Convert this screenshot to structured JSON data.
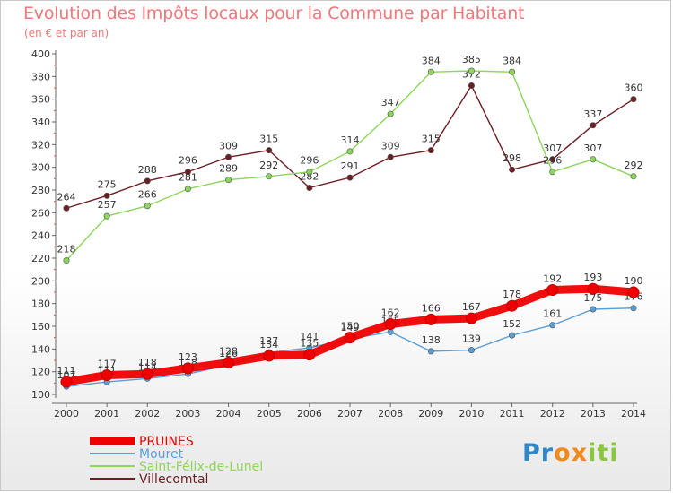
{
  "title": "Evolution des Impôts locaux pour la Commune par Habitant",
  "subtitle": "(en € et par an)",
  "logo": {
    "letters": [
      "P",
      "r",
      "o",
      "x",
      "i",
      "t",
      "i"
    ],
    "colors": [
      "#2f86c8",
      "#2f86c8",
      "#f08a1c",
      "#f08a1c",
      "#8cc63f",
      "#8cc63f",
      "#8cc63f"
    ]
  },
  "chart_data": {
    "type": "line",
    "x": [
      "2000",
      "2001",
      "2002",
      "2003",
      "2004",
      "2005",
      "2006",
      "2007",
      "2008",
      "2009",
      "2010",
      "2011",
      "2012",
      "2013",
      "2014"
    ],
    "ylim": [
      100,
      400
    ],
    "yticks": [
      100,
      120,
      140,
      160,
      180,
      200,
      220,
      240,
      260,
      280,
      300,
      320,
      340,
      360,
      380,
      400
    ],
    "grid": false,
    "legend_position": "bottom-left",
    "series": [
      {
        "name": "Villecomtal",
        "color": "#6b1f24",
        "values": [
          264,
          275,
          288,
          296,
          309,
          315,
          282,
          291,
          309,
          315,
          372,
          298,
          307,
          337,
          360
        ],
        "labels": [
          "264",
          "275",
          "288",
          "296",
          "309",
          "315",
          "282",
          "291",
          "309",
          "315",
          "372",
          "298",
          "307",
          "337",
          "360"
        ]
      },
      {
        "name": "Saint-Félix-de-Lunel",
        "color": "#8cd65a",
        "values": [
          218,
          257,
          266,
          281,
          289,
          292,
          296,
          314,
          347,
          384,
          385,
          384,
          296,
          307,
          292
        ],
        "labels": [
          "218",
          "257",
          "266",
          "281",
          "289",
          "292",
          "296",
          "314",
          "347",
          "384",
          "385",
          "384",
          "296",
          "307",
          "292"
        ]
      },
      {
        "name": "Mouret",
        "color": "#5a9ed6",
        "values": [
          107,
          111,
          114,
          118,
          126,
          137,
          141,
          149,
          155,
          138,
          139,
          152,
          161,
          175,
          176
        ],
        "labels": [
          "107",
          "111",
          "114",
          "118",
          "126",
          "137",
          "141",
          "149",
          "155",
          "138",
          "139",
          "152",
          "161",
          "175",
          "176"
        ]
      },
      {
        "name": "PRUINES",
        "color": "#ee0000",
        "values": [
          111,
          117,
          118,
          123,
          128,
          134,
          135,
          150,
          162,
          166,
          167,
          178,
          192,
          193,
          190
        ],
        "labels": [
          "111",
          "117",
          "118",
          "123",
          "128",
          "134",
          "135",
          "150",
          "162",
          "166",
          "167",
          "178",
          "192",
          "193",
          "190"
        ]
      }
    ],
    "legend": [
      "PRUINES",
      "Mouret",
      "Saint-Félix-de-Lunel",
      "Villecomtal"
    ]
  }
}
